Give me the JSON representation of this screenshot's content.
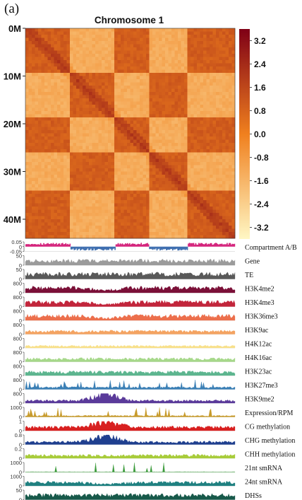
{
  "panel_label": "(a)",
  "chart_data": [
    {
      "type": "heatmap",
      "title": "Chromosome 1",
      "y_tick_labels": [
        "0M",
        "10M",
        "20M",
        "30M",
        "40M"
      ],
      "y_tick_values": [
        0,
        10,
        20,
        30,
        40
      ],
      "genome_range_mb": [
        0,
        44
      ],
      "colorbar_ticks": [
        "3.2",
        "2.4",
        "1.6",
        "0.8",
        "0.0",
        "-0.8",
        "-1.6",
        "-2.4",
        "-3.2"
      ],
      "colorbar_range": [
        -3.6,
        3.6
      ],
      "colors": {
        "high": "#7f0016",
        "mid": "#f0801e",
        "low": "#fff7c4"
      },
      "compartment_blocks_mb": [
        0,
        9.5,
        19,
        26,
        34,
        44
      ]
    },
    {
      "type": "area",
      "x_tick_labels": [
        "0M",
        "5M",
        "10M",
        "15M",
        "20M",
        "25M",
        "30M",
        "35M",
        "40M"
      ],
      "x_tick_values": [
        0,
        5,
        10,
        15,
        20,
        25,
        30,
        35,
        40
      ],
      "x_range_mb": [
        0,
        44
      ],
      "centromere_mb": 16.8,
      "centromere_color": "#e8111a",
      "tracks": [
        {
          "name": "Compartment A/B",
          "ticks": [
            "0.05",
            "0",
            "-0.05"
          ],
          "kind": "ab",
          "color_a": "#d4247c",
          "color_b": "#3f6fb0"
        },
        {
          "name": "Gene",
          "ticks": [
            "50",
            "0"
          ],
          "color": "#9b9b9b",
          "profile": "flat",
          "level": 0.45
        },
        {
          "name": "TE",
          "ticks": [
            "50",
            "0"
          ],
          "color": "#595959",
          "profile": "flat",
          "level": 0.5
        },
        {
          "name": "H3K4me2",
          "ticks": [
            "800",
            "0"
          ],
          "color": "#7b1038",
          "profile": "dip",
          "level": 0.5
        },
        {
          "name": "H3K4me3",
          "ticks": [
            "800",
            "0"
          ],
          "color": "#c2253b",
          "profile": "dip",
          "level": 0.45
        },
        {
          "name": "H3K36me3",
          "ticks": [
            "800",
            "0"
          ],
          "color": "#ec6f4c",
          "profile": "dip",
          "level": 0.45
        },
        {
          "name": "H3K9ac",
          "ticks": [
            "800",
            "0"
          ],
          "color": "#f4a361",
          "profile": "flat",
          "level": 0.3
        },
        {
          "name": "H4K12ac",
          "ticks": [
            "800",
            "0"
          ],
          "color": "#f8e08a",
          "profile": "flat",
          "level": 0.2
        },
        {
          "name": "H4K16ac",
          "ticks": [
            "800",
            "0"
          ],
          "color": "#a6d88a",
          "profile": "flat",
          "level": 0.3
        },
        {
          "name": "H3K23ac",
          "ticks": [
            "800",
            "0"
          ],
          "color": "#5db58f",
          "profile": "flat",
          "level": 0.35
        },
        {
          "name": "H3K27me3",
          "ticks": [
            "800",
            "0"
          ],
          "color": "#3a7fb5",
          "profile": "spiky",
          "level": 0.2
        },
        {
          "name": "H3K9me2",
          "ticks": [
            "800",
            "0"
          ],
          "color": "#5a3a9a",
          "profile": "peak",
          "level": 0.25
        },
        {
          "name": "Expression/RPM",
          "ticks": [
            "1000",
            "0"
          ],
          "color": "#c79a2a",
          "profile": "spiky",
          "level": 0.12
        },
        {
          "name": "CG methylation",
          "ticks": [
            "1",
            "0"
          ],
          "color": "#d82020",
          "profile": "peak",
          "level": 0.35
        },
        {
          "name": "CHG methylation",
          "ticks": [
            "0.8",
            "0"
          ],
          "color": "#1f3f8f",
          "profile": "peak",
          "level": 0.25
        },
        {
          "name": "CHH methylation",
          "ticks": [
            "0.2",
            "0"
          ],
          "color": "#a8cc3a",
          "profile": "flat",
          "level": 0.3
        },
        {
          "name": "21nt smRNA",
          "ticks": [
            "1000",
            "0"
          ],
          "color": "#3a9a3a",
          "profile": "sparse",
          "level": 0.05
        },
        {
          "name": "24nt smRNA",
          "ticks": [
            "1000",
            "0"
          ],
          "color": "#1f8080",
          "profile": "dip",
          "level": 0.35
        },
        {
          "name": "DHSs",
          "ticks": [
            "50",
            "0"
          ],
          "color": "#17594a",
          "profile": "flat",
          "level": 0.45
        }
      ]
    }
  ]
}
